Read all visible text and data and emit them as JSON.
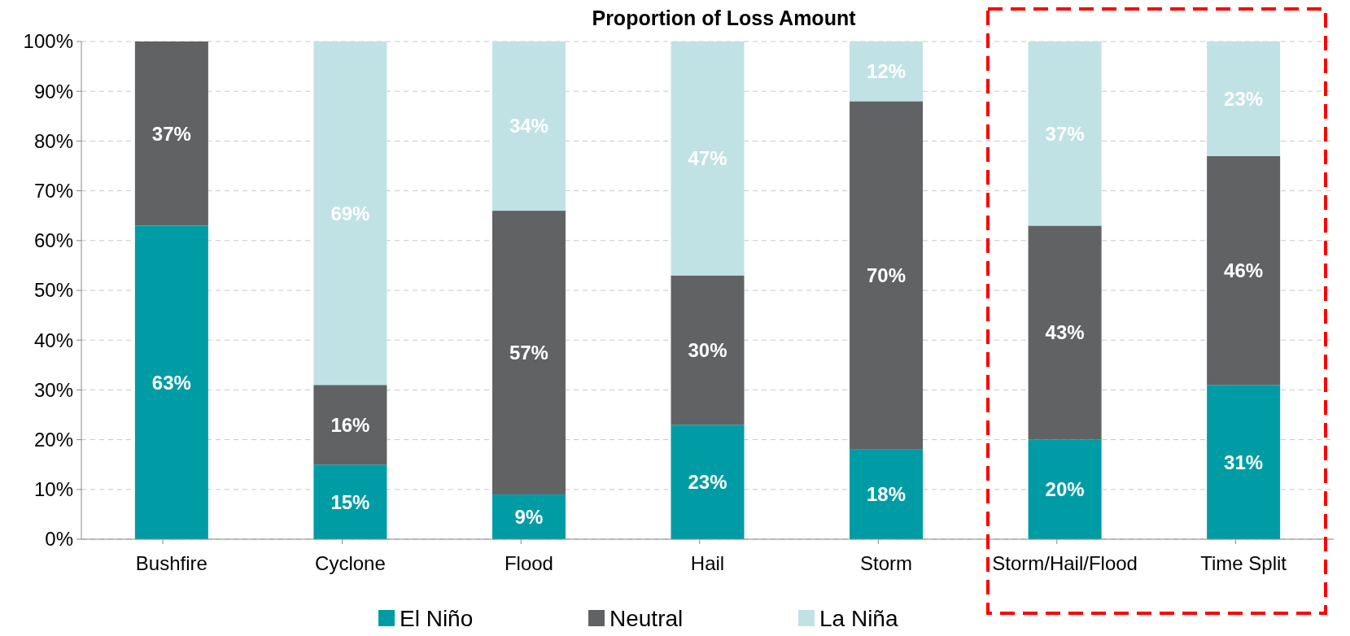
{
  "chart_data": {
    "type": "bar",
    "title": "Proportion of Loss Amount",
    "stacked": true,
    "categories": [
      "Bushfire",
      "Cyclone",
      "Flood",
      "Hail",
      "Storm",
      "Storm/Hail/Flood",
      "Time Split"
    ],
    "series": [
      {
        "name": "El Niño",
        "color": "#009ca6",
        "values": [
          63,
          15,
          9,
          23,
          18,
          20,
          31
        ],
        "value_labels": [
          "63%",
          "15%",
          "9%",
          "23%",
          "18%",
          "20%",
          "31%"
        ]
      },
      {
        "name": "Neutral",
        "color": "#616264",
        "values": [
          37,
          16,
          57,
          30,
          70,
          43,
          46
        ],
        "value_labels": [
          "37%",
          "16%",
          "57%",
          "30%",
          "70%",
          "43%",
          "46%"
        ]
      },
      {
        "name": "La Niña",
        "color": "#c0e2e4",
        "values": [
          0,
          69,
          34,
          47,
          12,
          37,
          23
        ],
        "value_labels": [
          null,
          "69%",
          "34%",
          "47%",
          "12%",
          "37%",
          "23%"
        ]
      }
    ],
    "ylim": [
      0,
      100
    ],
    "yticks": [
      {
        "value": 0,
        "label": "0%"
      },
      {
        "value": 10,
        "label": "10%"
      },
      {
        "value": 20,
        "label": "20%"
      },
      {
        "value": 30,
        "label": "30%"
      },
      {
        "value": 40,
        "label": "40%"
      },
      {
        "value": 50,
        "label": "50%"
      },
      {
        "value": 60,
        "label": "60%"
      },
      {
        "value": 70,
        "label": "70%"
      },
      {
        "value": 80,
        "label": "80%"
      },
      {
        "value": 90,
        "label": "90%"
      },
      {
        "value": 100,
        "label": "100%"
      }
    ],
    "grid": "y",
    "legend": "bottom"
  }
}
